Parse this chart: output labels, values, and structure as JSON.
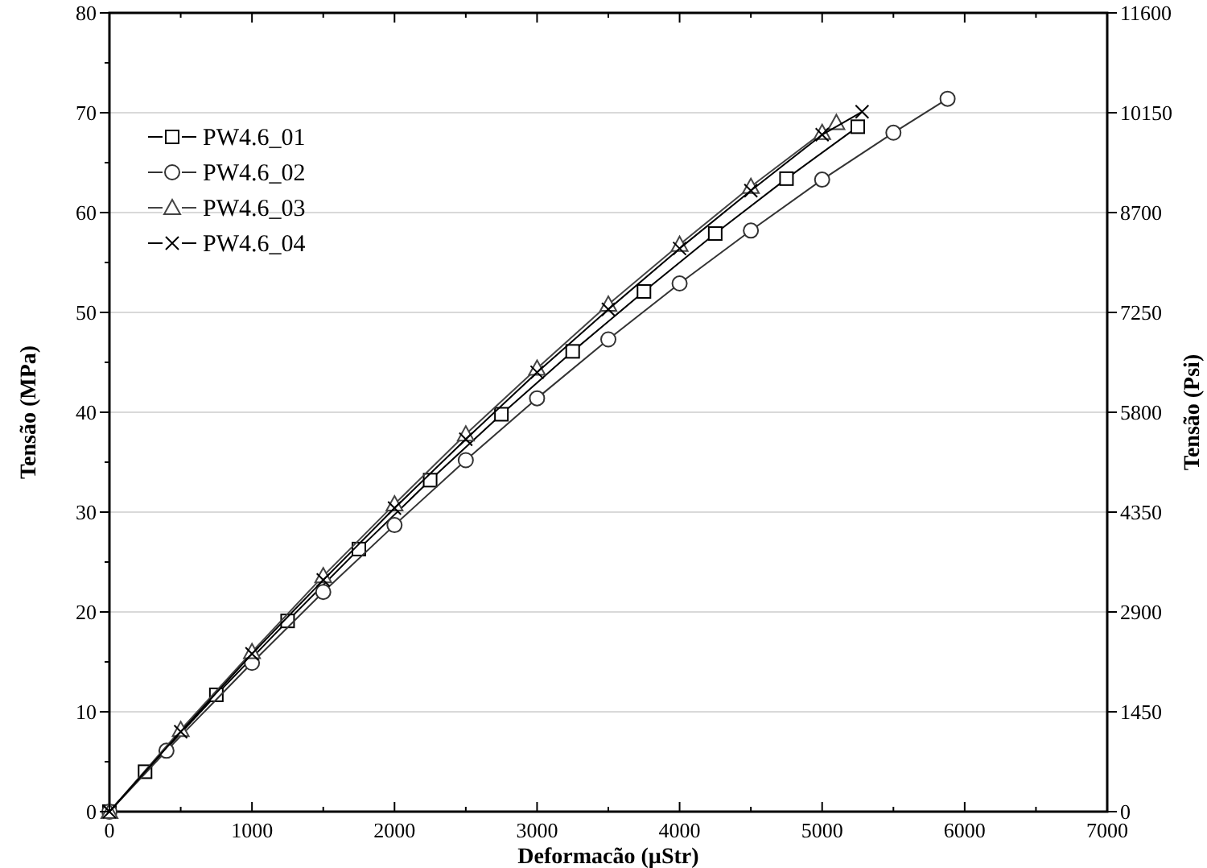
{
  "chart_data": {
    "type": "line",
    "xlabel": "Deformacão (µStr)",
    "ylabel": "Tensão (MPa)",
    "y2label": "Tensão (Psi)",
    "xlim": [
      0,
      7000
    ],
    "xticks": [
      0,
      1000,
      2000,
      3000,
      4000,
      5000,
      6000,
      7000
    ],
    "ylim": [
      0,
      80
    ],
    "yticks": [
      0,
      10,
      20,
      30,
      40,
      50,
      60,
      70,
      80
    ],
    "y2lim": [
      0,
      11600
    ],
    "y2ticks": [
      0,
      1450,
      2900,
      4350,
      5800,
      7250,
      8700,
      10150,
      11600
    ],
    "grid": "y",
    "legend": "top left",
    "line_style": "solid",
    "series": [
      {
        "name": "PW4.6_01",
        "color": "#000000",
        "marker": "square",
        "x": [
          0,
          250,
          750,
          1250,
          1750,
          2250,
          2750,
          3250,
          3750,
          4250,
          4750,
          5250
        ],
        "values": [
          0,
          4.0,
          11.7,
          19.1,
          26.3,
          33.2,
          39.8,
          46.1,
          52.1,
          57.9,
          63.4,
          68.6
        ]
      },
      {
        "name": "PW4.6_02",
        "color": "#333333",
        "marker": "circle",
        "x": [
          0,
          400,
          1000,
          1500,
          2000,
          2500,
          3000,
          3500,
          4000,
          4500,
          5000,
          5500,
          5880
        ],
        "values": [
          0,
          6.1,
          14.9,
          22.0,
          28.7,
          35.2,
          41.4,
          47.3,
          52.9,
          58.2,
          63.3,
          68.0,
          71.4
        ]
      },
      {
        "name": "PW4.6_03",
        "color": "#444444",
        "marker": "triangle",
        "x": [
          0,
          500,
          1000,
          1500,
          2000,
          2500,
          3000,
          3500,
          4000,
          4500,
          5000,
          5100
        ],
        "values": [
          0,
          8.2,
          16.0,
          23.6,
          30.8,
          37.8,
          44.4,
          50.8,
          56.8,
          62.6,
          68.0,
          69.0
        ]
      },
      {
        "name": "PW4.6_04",
        "color": "#000000",
        "marker": "cross",
        "x": [
          0,
          500,
          1000,
          1500,
          2000,
          2500,
          3000,
          3500,
          4000,
          4500,
          5000,
          5280
        ],
        "values": [
          0,
          8.0,
          15.8,
          23.2,
          30.4,
          37.3,
          44.0,
          50.3,
          56.4,
          62.2,
          67.8,
          70.1
        ]
      }
    ]
  }
}
